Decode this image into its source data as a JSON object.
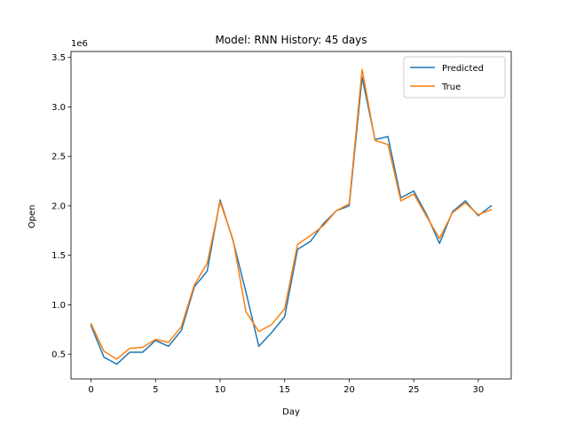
{
  "chart_data": {
    "type": "line",
    "title": "Model: RNN  History: 45 days",
    "xlabel": "Day",
    "ylabel": "Open",
    "y_scale_label": "1e6",
    "xlim": [
      -1.55,
      32.55
    ],
    "ylim": [
      250000,
      3560000
    ],
    "x_ticks": [
      0,
      5,
      10,
      15,
      20,
      25,
      30
    ],
    "x_tick_labels": [
      "0",
      "5",
      "10",
      "15",
      "20",
      "25",
      "30"
    ],
    "y_ticks": [
      500000,
      1000000,
      1500000,
      2000000,
      2500000,
      3000000,
      3500000
    ],
    "y_tick_labels": [
      "0.5",
      "1.0",
      "1.5",
      "2.0",
      "2.5",
      "3.0",
      "3.5"
    ],
    "grid": false,
    "legend_position": "top-right",
    "x": [
      0,
      1,
      2,
      3,
      4,
      5,
      6,
      7,
      8,
      9,
      10,
      11,
      12,
      13,
      14,
      15,
      16,
      17,
      18,
      19,
      20,
      21,
      22,
      23,
      24,
      25,
      26,
      27,
      28,
      29,
      30,
      31
    ],
    "series": [
      {
        "name": "Predicted",
        "color": "#1f77b4",
        "values": [
          790000,
          470000,
          400000,
          520000,
          520000,
          640000,
          580000,
          740000,
          1180000,
          1340000,
          2060000,
          1650000,
          1130000,
          580000,
          720000,
          880000,
          1560000,
          1640000,
          1820000,
          1950000,
          2000000,
          3300000,
          2670000,
          2700000,
          2080000,
          2150000,
          1910000,
          1620000,
          1940000,
          2050000,
          1900000,
          2000000
        ]
      },
      {
        "name": "True",
        "color": "#ff7f0e",
        "values": [
          810000,
          530000,
          450000,
          560000,
          570000,
          650000,
          620000,
          780000,
          1200000,
          1420000,
          2040000,
          1660000,
          930000,
          730000,
          800000,
          960000,
          1610000,
          1700000,
          1800000,
          1950000,
          2020000,
          3380000,
          2660000,
          2620000,
          2050000,
          2120000,
          1890000,
          1670000,
          1930000,
          2030000,
          1910000,
          1960000
        ]
      }
    ]
  }
}
